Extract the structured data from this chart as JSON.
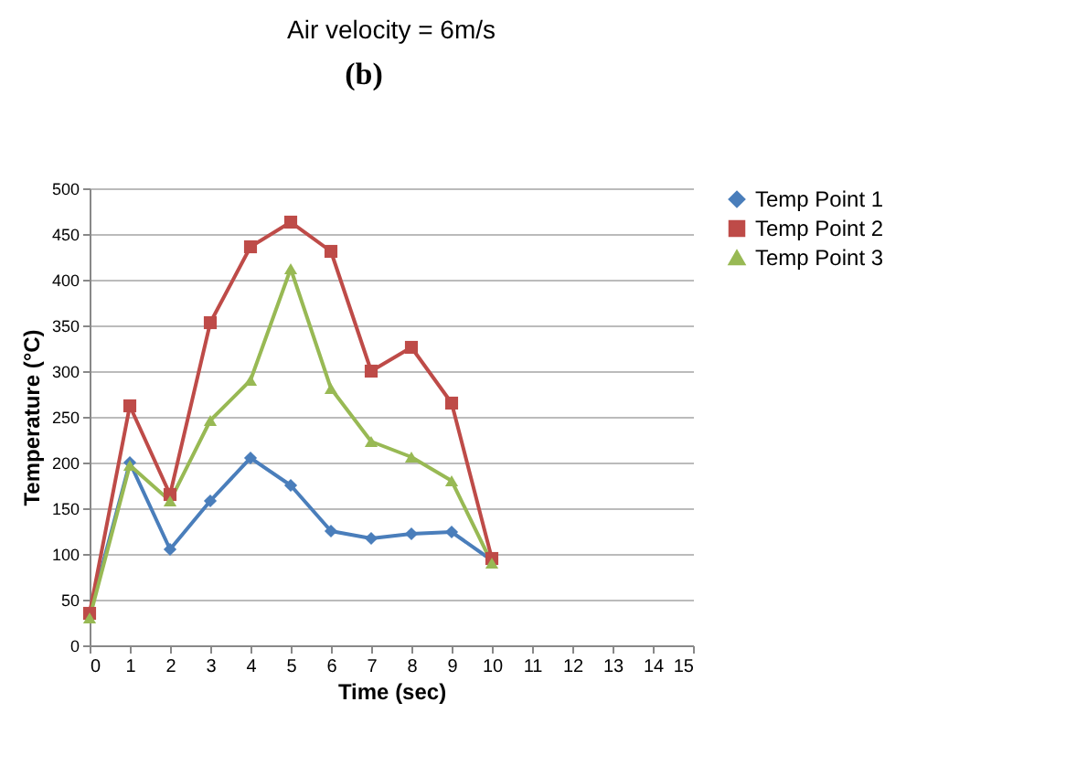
{
  "chart_data": {
    "type": "line",
    "title": "Air velocity = 6m/s",
    "xlabel": "Time (sec)",
    "ylabel": "Temperature (°C)",
    "annotations": [
      "(b)"
    ],
    "x": [
      0,
      1,
      2,
      3,
      4,
      5,
      6,
      7,
      8,
      9,
      10
    ],
    "series": [
      {
        "name": "Temp Point 1",
        "color": "#4a7ebb",
        "marker": "diamond",
        "values": [
          35,
          200,
          105,
          158,
          205,
          175,
          125,
          117,
          122,
          124,
          93
        ]
      },
      {
        "name": "Temp Point 2",
        "color": "#be4b48",
        "marker": "square",
        "values": [
          35,
          262,
          165,
          353,
          436,
          463,
          431,
          300,
          326,
          265,
          95
        ]
      },
      {
        "name": "Temp Point 3",
        "color": "#98b954",
        "marker": "triangle",
        "values": [
          30,
          197,
          158,
          246,
          290,
          412,
          281,
          223,
          206,
          180,
          90
        ]
      }
    ],
    "xlim": [
      0,
      15
    ],
    "xticks": [
      0,
      1,
      2,
      3,
      4,
      5,
      6,
      7,
      8,
      9,
      10,
      11,
      12,
      13,
      14,
      15
    ],
    "ylim": [
      0,
      500
    ],
    "yticks": [
      0,
      50,
      100,
      150,
      200,
      250,
      300,
      350,
      400,
      450,
      500
    ],
    "grid": "y",
    "legend": "right",
    "line_style": "solid"
  }
}
